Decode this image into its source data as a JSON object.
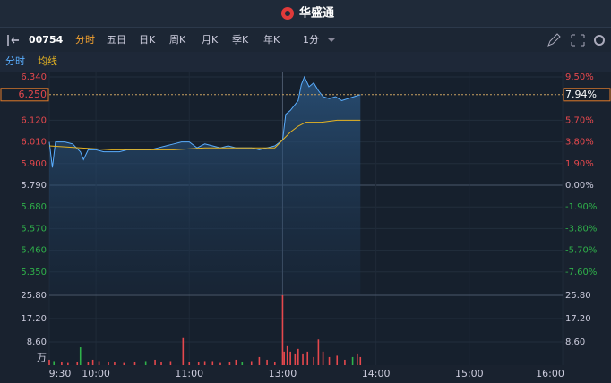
{
  "header": {
    "title": "华盛通"
  },
  "toolbar": {
    "code": "00754",
    "tabs": [
      "分时",
      "五日",
      "日K",
      "周K",
      "月K",
      "季K",
      "年K"
    ],
    "interval": "1分"
  },
  "chart_data": {
    "type": "line",
    "legend": [
      "分时",
      "均线"
    ],
    "xlim": [
      0,
      330
    ],
    "xticks": [
      {
        "value": 0,
        "label": "9:30"
      },
      {
        "value": 30,
        "label": "10:00"
      },
      {
        "value": 90,
        "label": "11:00"
      },
      {
        "value": 150,
        "label": "13:00"
      },
      {
        "value": 210,
        "label": "14:00"
      },
      {
        "value": 270,
        "label": "15:00"
      },
      {
        "value": 330,
        "label": "16:00"
      }
    ],
    "ylim": [
      5.24,
      6.34
    ],
    "yticks": [
      {
        "value": 6.34,
        "label": "6.340"
      },
      {
        "value": 6.12,
        "label": "6.120"
      },
      {
        "value": 6.01,
        "label": "6.010"
      },
      {
        "value": 5.9,
        "label": "5.900"
      },
      {
        "value": 5.79,
        "label": "5.790"
      },
      {
        "value": 5.68,
        "label": "5.680"
      },
      {
        "value": 5.57,
        "label": "5.570"
      },
      {
        "value": 5.46,
        "label": "5.460"
      },
      {
        "value": 5.35,
        "label": "5.350"
      }
    ],
    "y2lim": [
      -9.5,
      9.5
    ],
    "y2ticks": [
      {
        "value": 9.5,
        "label": "9.50%"
      },
      {
        "value": 5.7,
        "label": "5.70%"
      },
      {
        "value": 3.8,
        "label": "3.80%"
      },
      {
        "value": 1.9,
        "label": "1.90%"
      },
      {
        "value": 0,
        "label": "0.00%"
      },
      {
        "value": -1.9,
        "label": "-1.90%"
      },
      {
        "value": -3.8,
        "label": "-3.80%"
      },
      {
        "value": -5.7,
        "label": "-5.70%"
      },
      {
        "value": -7.6,
        "label": "-7.60%"
      }
    ],
    "last_price": 6.25,
    "last_price_label": "6.250",
    "last_change_label": "7.94%",
    "series": [
      {
        "name": "分时",
        "color": "#5aaeff",
        "x": [
          0,
          2,
          4,
          10,
          15,
          20,
          22,
          25,
          30,
          35,
          40,
          45,
          50,
          55,
          60,
          65,
          70,
          75,
          80,
          85,
          90,
          95,
          100,
          105,
          110,
          115,
          120,
          125,
          130,
          135,
          140,
          145,
          150,
          152,
          155,
          158,
          160,
          162,
          164,
          167,
          170,
          173,
          176,
          180,
          184,
          188,
          192,
          196,
          200
        ],
        "values": [
          6.01,
          5.88,
          6.01,
          6.01,
          6.0,
          5.96,
          5.92,
          5.97,
          5.97,
          5.96,
          5.96,
          5.96,
          5.97,
          5.97,
          5.97,
          5.97,
          5.98,
          5.99,
          6.0,
          6.01,
          6.01,
          5.98,
          6.0,
          5.99,
          5.98,
          5.99,
          5.98,
          5.98,
          5.98,
          5.97,
          5.98,
          5.99,
          6.02,
          6.15,
          6.17,
          6.2,
          6.22,
          6.3,
          6.34,
          6.29,
          6.31,
          6.27,
          6.24,
          6.23,
          6.24,
          6.22,
          6.23,
          6.24,
          6.25
        ]
      },
      {
        "name": "均线",
        "color": "#e6b422",
        "x": [
          0,
          20,
          40,
          60,
          80,
          100,
          120,
          145,
          150,
          155,
          160,
          165,
          175,
          185,
          200
        ],
        "values": [
          5.99,
          5.98,
          5.97,
          5.97,
          5.97,
          5.98,
          5.98,
          5.98,
          6.02,
          6.06,
          6.09,
          6.11,
          6.11,
          6.12,
          6.12
        ]
      }
    ],
    "volume": {
      "type": "bar",
      "unit": "万",
      "ylim": [
        0,
        25.8
      ],
      "yticks": [
        {
          "value": 25.8,
          "label": "25.80"
        },
        {
          "value": 17.2,
          "label": "17.20"
        },
        {
          "value": 8.6,
          "label": "8.60"
        }
      ],
      "x": [
        0,
        3,
        8,
        12,
        18,
        20,
        25,
        28,
        32,
        38,
        42,
        48,
        55,
        62,
        68,
        72,
        78,
        86,
        90,
        96,
        100,
        105,
        110,
        116,
        120,
        124,
        130,
        135,
        140,
        145,
        150,
        151,
        153,
        155,
        158,
        160,
        163,
        166,
        170,
        173,
        176,
        180,
        185,
        190,
        195,
        198,
        200
      ],
      "values": [
        2.0,
        1.5,
        1.0,
        0.8,
        1.2,
        6.6,
        1.0,
        2.0,
        1.5,
        1.0,
        1.2,
        0.8,
        1.0,
        1.5,
        2.0,
        1.0,
        1.5,
        10.0,
        1.2,
        1.0,
        1.5,
        1.5,
        0.8,
        1.0,
        2.0,
        1.0,
        1.5,
        3.0,
        2.0,
        1.0,
        25.8,
        5.0,
        7.0,
        5.0,
        4.0,
        6.0,
        4.0,
        5.0,
        3.0,
        9.5,
        5.0,
        3.0,
        3.5,
        2.0,
        3.0,
        4.0,
        3.0
      ],
      "colors": [
        "#e5484d",
        "#2fb24a",
        "#e5484d",
        "#e5484d",
        "#e5484d",
        "#2fb24a",
        "#e5484d",
        "#e5484d",
        "#e5484d",
        "#e5484d",
        "#e5484d",
        "#e5484d",
        "#e5484d",
        "#2fb24a",
        "#e5484d",
        "#e5484d",
        "#e5484d",
        "#e5484d",
        "#e5484d",
        "#e5484d",
        "#e5484d",
        "#e5484d",
        "#e5484d",
        "#e5484d",
        "#e5484d",
        "#2fb24a",
        "#e5484d",
        "#e5484d",
        "#e5484d",
        "#e5484d",
        "#e5484d",
        "#e5484d",
        "#e5484d",
        "#e5484d",
        "#e5484d",
        "#e5484d",
        "#e5484d",
        "#e5484d",
        "#e5484d",
        "#e5484d",
        "#e5484d",
        "#e5484d",
        "#e5484d",
        "#e5484d",
        "#2fb24a",
        "#e5484d",
        "#e5484d"
      ]
    }
  }
}
